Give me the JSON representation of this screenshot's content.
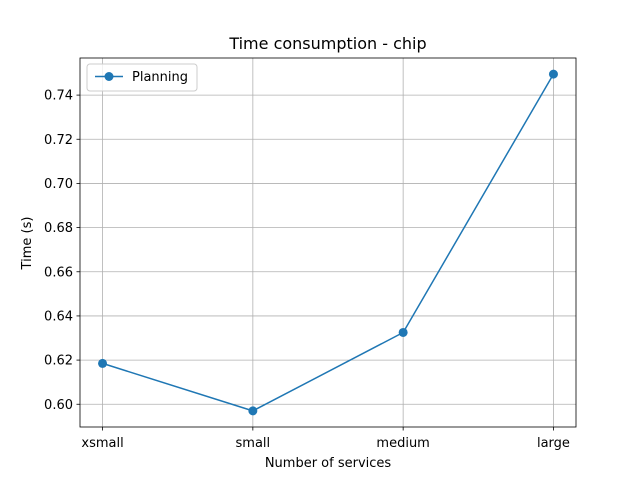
{
  "chart_data": {
    "type": "line",
    "title": "Time consumption - chip",
    "xlabel": "Number of services",
    "ylabel": "Time (s)",
    "categories": [
      "xsmall",
      "small",
      "medium",
      "large"
    ],
    "series": [
      {
        "name": "Planning",
        "values": [
          0.6185,
          0.597,
          0.6325,
          0.7495
        ],
        "color": "#1f77b4",
        "marker": "circle"
      }
    ],
    "ylim": [
      0.5897,
      0.7568
    ],
    "yticks": [
      0.6,
      0.62,
      0.64,
      0.66,
      0.68,
      0.7,
      0.72,
      0.74
    ],
    "ytick_labels": [
      "0.60",
      "0.62",
      "0.64",
      "0.66",
      "0.68",
      "0.70",
      "0.72",
      "0.74"
    ],
    "grid": true,
    "legend_position": "top-left"
  }
}
